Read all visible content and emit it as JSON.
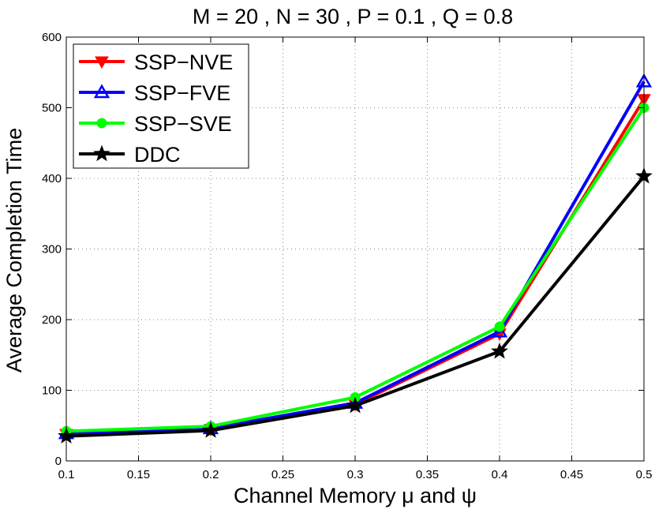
{
  "chart_data": {
    "type": "line",
    "title": "M = 20 , N = 30 , P = 0.1 , Q = 0.8",
    "xlabel": "Channel Memory μ and ψ",
    "ylabel": "Average Completion Time",
    "xlim": [
      0.1,
      0.5
    ],
    "ylim": [
      0,
      600
    ],
    "xticks": [
      "0.1",
      "0.15",
      "0.2",
      "0.25",
      "0.3",
      "0.35",
      "0.4",
      "0.45",
      "0.5"
    ],
    "yticks": [
      "0",
      "100",
      "200",
      "300",
      "400",
      "500",
      "600"
    ],
    "grid": true,
    "legend_position": "top-left",
    "x": [
      0.1,
      0.2,
      0.3,
      0.4,
      0.5
    ],
    "series": [
      {
        "name": "SSP−NVE",
        "color": "#ff0000",
        "marker": "triangle-down",
        "values": [
          38,
          45,
          80,
          180,
          512
        ]
      },
      {
        "name": "SSP−FVE",
        "color": "#0000ff",
        "marker": "triangle-up",
        "values": [
          39,
          46,
          82,
          183,
          537
        ]
      },
      {
        "name": "SSP−SVE",
        "color": "#00ff00",
        "marker": "circle",
        "values": [
          42,
          49,
          90,
          190,
          500
        ]
      },
      {
        "name": "DDC",
        "color": "#000000",
        "marker": "star",
        "values": [
          35,
          43,
          78,
          155,
          403
        ]
      }
    ]
  }
}
